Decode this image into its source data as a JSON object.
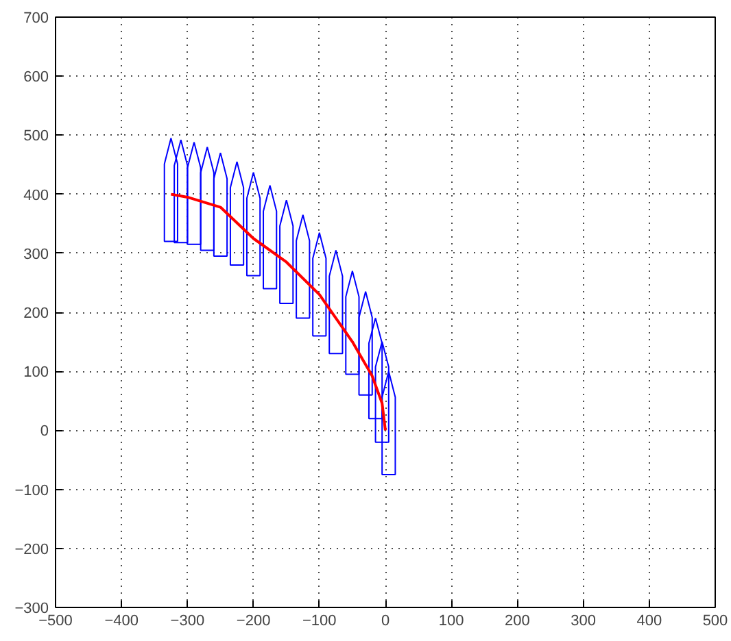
{
  "chart_data": {
    "type": "line",
    "xlim": [
      -500,
      500
    ],
    "ylim": [
      -300,
      700
    ],
    "xticks": [
      -500,
      -400,
      -300,
      -200,
      -100,
      0,
      100,
      200,
      300,
      400,
      500
    ],
    "yticks": [
      -300,
      -200,
      -100,
      0,
      100,
      200,
      300,
      400,
      500,
      600,
      700
    ],
    "grid": true,
    "series": [
      {
        "type": "bar",
        "color": "#0000ff",
        "x": [
          -325,
          -310,
          -290,
          -270,
          -250,
          -225,
          -200,
          -175,
          -150,
          -125,
          -100,
          -75,
          -50,
          -30,
          -15,
          -5,
          5
        ],
        "base": [
          320,
          318,
          315,
          305,
          295,
          280,
          262,
          240,
          215,
          190,
          160,
          130,
          95,
          60,
          20,
          -20,
          -75
        ],
        "values": [
          175,
          174,
          173,
          175,
          175,
          175,
          175,
          175,
          175,
          175,
          175,
          175,
          175,
          175,
          170,
          170,
          175
        ]
      },
      {
        "color": "#ff0000",
        "x": [
          -325,
          -300,
          -250,
          -200,
          -150,
          -100,
          -50,
          -20,
          -5,
          0
        ],
        "values": [
          400,
          395,
          378,
          325,
          285,
          230,
          150,
          92,
          46,
          0
        ]
      }
    ]
  }
}
